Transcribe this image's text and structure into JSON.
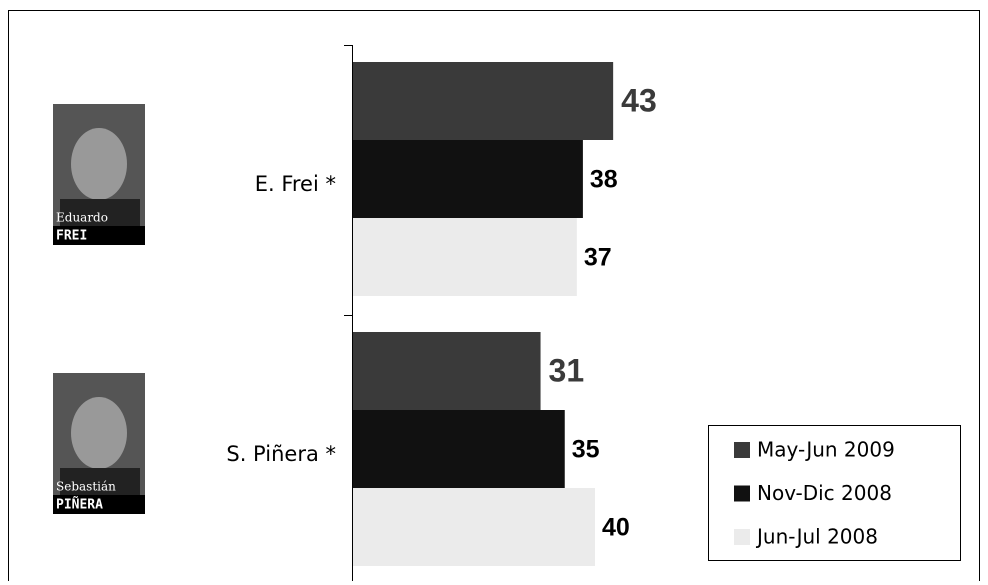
{
  "chart_data": {
    "type": "bar",
    "orientation": "horizontal",
    "categories": [
      "E. Frei *",
      "S. Piñera *"
    ],
    "photo_captions": [
      [
        "Eduardo",
        "FREI"
      ],
      [
        "Sebastián",
        "PIÑERA"
      ]
    ],
    "series": [
      {
        "name": "May-Jun 2009",
        "color": "#3a3a3a",
        "values": [
          43,
          31
        ]
      },
      {
        "name": "Nov-Dic 2008",
        "color": "#111111",
        "values": [
          38,
          35
        ]
      },
      {
        "name": "Jun-Jul 2008",
        "color": "#ebebeb",
        "values": [
          37,
          40
        ]
      }
    ],
    "legend": "bottom-right"
  }
}
